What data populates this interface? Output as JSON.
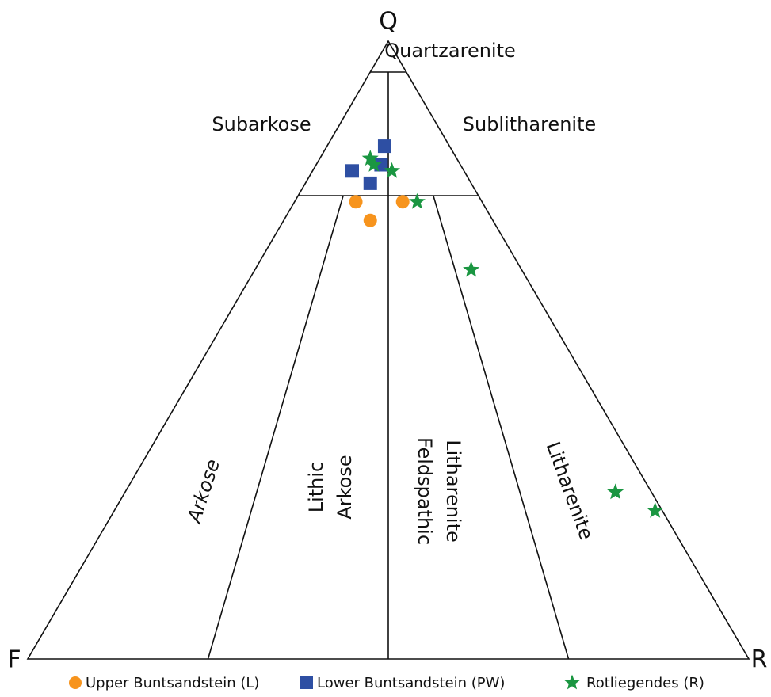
{
  "chart_data": {
    "type": "ternary",
    "vertices": [
      "Q",
      "F",
      "R"
    ],
    "q_lines": [
      95,
      75
    ],
    "ratio_lines": [
      {
        "r_share": 25,
        "q_max": 75
      },
      {
        "r_share": 50,
        "q_max": 95
      },
      {
        "r_share": 75,
        "q_max": 75
      }
    ],
    "regions": [
      [
        "Quartzarenite"
      ],
      [
        "Subarkose"
      ],
      [
        "Sublitharenite"
      ],
      [
        "Arkose"
      ],
      [
        "Lithic",
        "Arkose"
      ],
      [
        "Feldspathic",
        "Litharenite"
      ],
      [
        "Litharenite"
      ]
    ],
    "series": [
      {
        "name": "Upper Buntsandstein (L)",
        "color": "#f7941d",
        "marker": "circle",
        "q": [
          74,
          71,
          74
        ],
        "f": [
          17.5,
          17,
          11
        ],
        "r": [
          8.5,
          12,
          15
        ]
      },
      {
        "name": "Lower Buntsandstein (PW)",
        "color": "#2e4fa3",
        "marker": "square",
        "q": [
          83,
          80,
          79,
          77
        ],
        "f": [
          9,
          11,
          15.5,
          14
        ],
        "r": [
          8,
          9,
          5.5,
          9
        ]
      },
      {
        "name": "Rotliegendes (R)",
        "color": "#1a9641",
        "marker": "star",
        "q": [
          81,
          80,
          79,
          74,
          63,
          27,
          24
        ],
        "f": [
          12,
          12,
          10,
          9,
          7,
          5,
          1
        ],
        "r": [
          7,
          8,
          11,
          17,
          30,
          68,
          75
        ]
      }
    ]
  }
}
